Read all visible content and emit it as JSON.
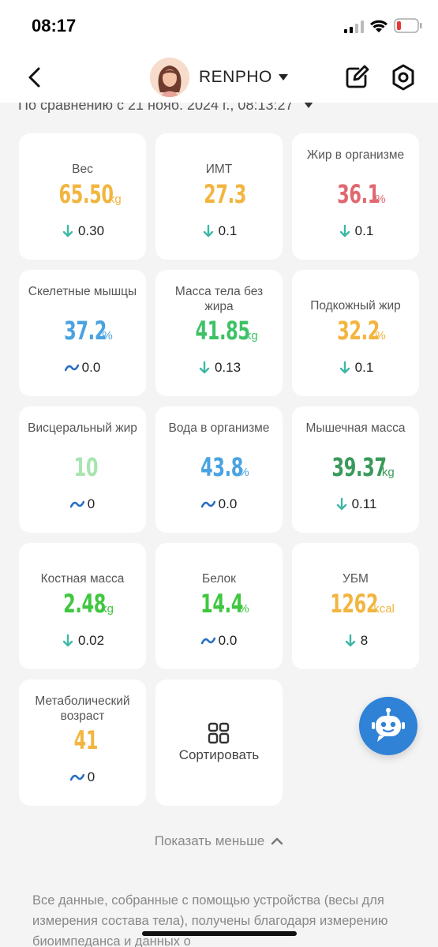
{
  "status_bar": {
    "time": "08:17"
  },
  "header": {
    "profile_name": "RENPHO",
    "back_icon": "chevron-left-icon",
    "edit_icon": "edit-icon",
    "settings_icon": "hexagon-settings-icon"
  },
  "compare": {
    "text": "По сравнению с 21 нояб. 2024 г., 08:13:27"
  },
  "metrics": [
    {
      "label": "Вес",
      "value": "65.50",
      "unit": "kg",
      "color": "#f2b540",
      "trend": "down",
      "change": "0.30"
    },
    {
      "label": "ИМТ",
      "value": "27.3",
      "unit": "",
      "color": "#f2b540",
      "trend": "down",
      "change": "0.1"
    },
    {
      "label": "Жир в организме",
      "value": "36.1",
      "unit": "%",
      "color": "#e06870",
      "trend": "down",
      "change": "0.1"
    },
    {
      "label": "Скелетные мышцы",
      "value": "37.2",
      "unit": "%",
      "color": "#4aa3e0",
      "trend": "flat",
      "change": "0.0"
    },
    {
      "label": "Масса тела без жира",
      "value": "41.85",
      "unit": "kg",
      "color": "#3ec267",
      "trend": "down",
      "change": "0.13"
    },
    {
      "label": "Подкожный жир",
      "value": "32.2",
      "unit": "%",
      "color": "#f2b540",
      "trend": "down",
      "change": "0.1"
    },
    {
      "label": "Висцеральный жир",
      "value": "10",
      "unit": "",
      "color": "#a8e5b0",
      "trend": "flat",
      "change": "0"
    },
    {
      "label": "Вода в организме",
      "value": "43.8",
      "unit": "%",
      "color": "#4aa3e0",
      "trend": "flat",
      "change": "0.0"
    },
    {
      "label": "Мышечная масса",
      "value": "39.37",
      "unit": "kg",
      "color": "#3a9a5a",
      "trend": "down",
      "change": "0.11"
    },
    {
      "label": "Костная масса",
      "value": "2.48",
      "unit": "kg",
      "color": "#3fc73f",
      "trend": "down",
      "change": "0.02"
    },
    {
      "label": "Белок",
      "value": "14.4",
      "unit": "%",
      "color": "#3fc73f",
      "trend": "flat",
      "change": "0.0"
    },
    {
      "label": "УБМ",
      "value": "1262",
      "unit": "kcal",
      "color": "#f2b540",
      "trend": "down",
      "change": "8"
    },
    {
      "label": "Метаболический возраст",
      "value": "41",
      "unit": "",
      "color": "#f2b540",
      "trend": "flat",
      "change": "0"
    }
  ],
  "sort": {
    "label": "Сортировать",
    "icon": "sort-grid-icon"
  },
  "show_less": {
    "label": "Показать меньше"
  },
  "disclaimer": {
    "text": "Все данные, собранные с помощью устройства (весы для измерения состава тела), получены благодаря измерению биоимпеданса и данных о"
  },
  "colors": {
    "trend_down": "#3db8a5",
    "trend_flat": "#2a6fc4",
    "accent": "#2f82d6"
  }
}
